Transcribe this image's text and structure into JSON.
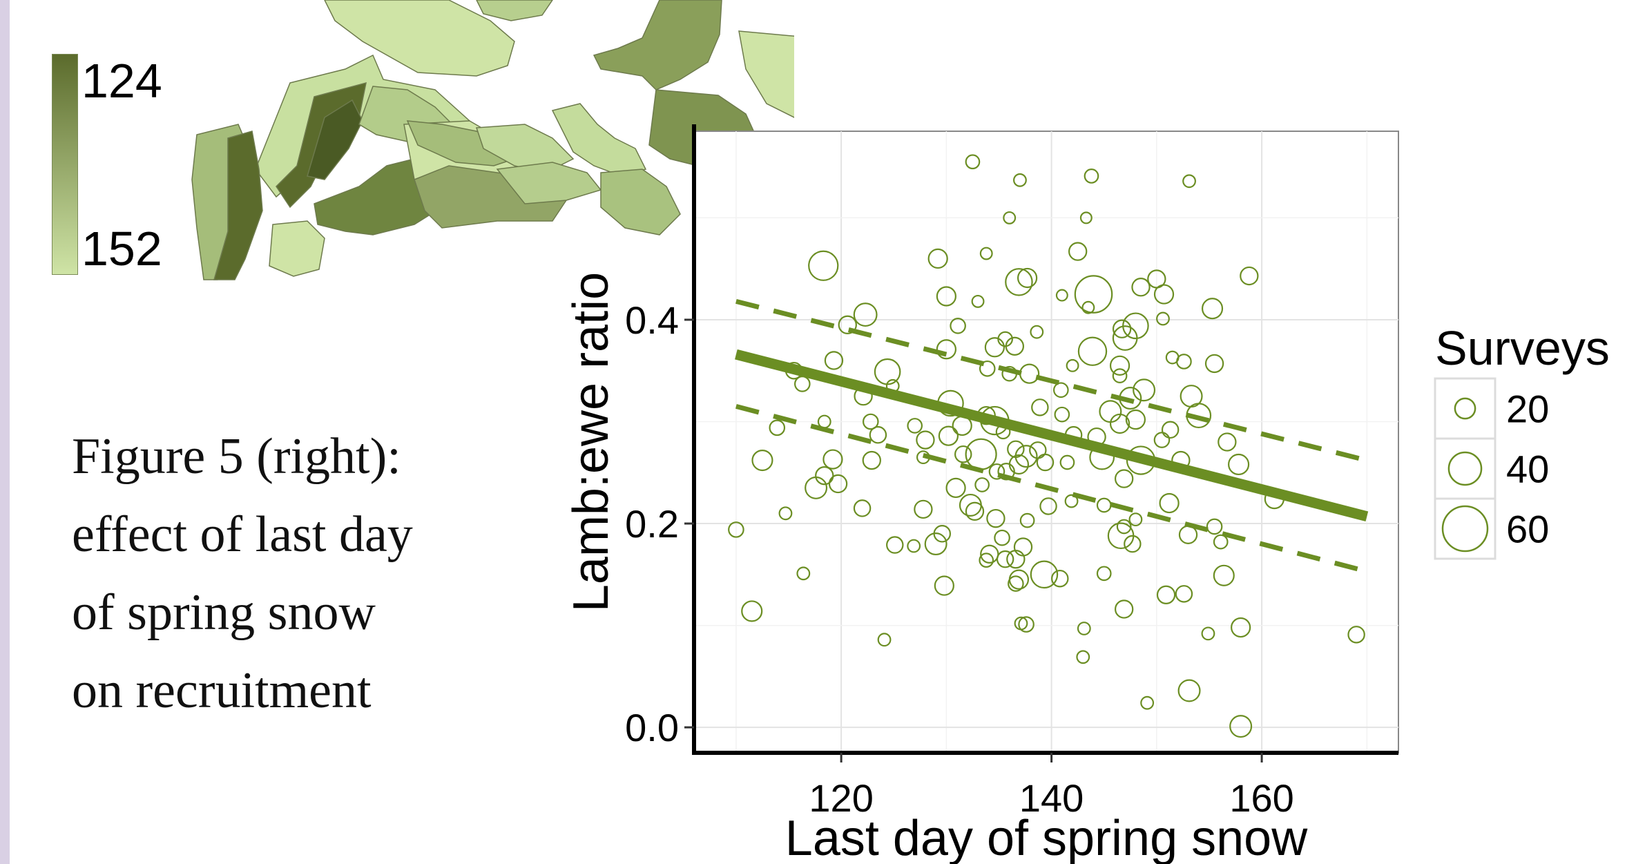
{
  "caption": {
    "lines": [
      "Figure 5 (right):",
      "effect of last day",
      "of spring snow",
      "on recruitment"
    ]
  },
  "map": {
    "legend_top": "124",
    "legend_bottom": "152",
    "colors": {
      "dark": "#5b6b2c",
      "mid": "#92a566",
      "light": "#cfe4a6"
    }
  },
  "chart_data": {
    "type": "scatter",
    "xlabel": "Last day of spring snow",
    "ylabel": "Lamb:ewe ratio",
    "xlim": [
      106,
      173
    ],
    "ylim": [
      -0.025,
      0.585
    ],
    "xticks": [
      120,
      140,
      160
    ],
    "yticks": [
      0.0,
      0.2,
      0.4
    ],
    "xtick_labels": [
      "120",
      "140",
      "160"
    ],
    "ytick_labels": [
      "0.0",
      "0.2",
      "0.4"
    ],
    "grid": true,
    "point_color": "#6b8e23",
    "size_legend": {
      "title": "Surveys",
      "position": "right",
      "entries": [
        {
          "label": "20",
          "value": 20
        },
        {
          "label": "40",
          "value": 40
        },
        {
          "label": "60",
          "value": 60
        }
      ]
    },
    "fit_line": {
      "x": [
        110,
        170
      ],
      "y": [
        0.366,
        0.207
      ]
    },
    "ci_upper": {
      "x": [
        110,
        170
      ],
      "y": [
        0.418,
        0.262
      ]
    },
    "ci_lower": {
      "x": [
        110,
        170
      ],
      "y": [
        0.315,
        0.153
      ]
    },
    "points": [
      [
        132.5,
        0.555,
        8
      ],
      [
        137,
        0.537,
        6
      ],
      [
        143.8,
        0.541,
        8
      ],
      [
        153.1,
        0.536,
        6
      ],
      [
        136,
        0.5,
        5
      ],
      [
        143.3,
        0.5,
        4
      ],
      [
        133.8,
        0.465,
        5
      ],
      [
        142.5,
        0.467,
        14
      ],
      [
        129.2,
        0.46,
        16
      ],
      [
        118.3,
        0.453,
        32
      ],
      [
        158.8,
        0.443,
        14
      ],
      [
        150,
        0.44,
        14
      ],
      [
        137.7,
        0.441,
        16
      ],
      [
        136.9,
        0.437,
        28
      ],
      [
        148.5,
        0.432,
        14
      ],
      [
        150.7,
        0.425,
        16
      ],
      [
        144,
        0.425,
        44
      ],
      [
        141,
        0.424,
        4
      ],
      [
        130,
        0.423,
        16
      ],
      [
        133,
        0.418,
        5
      ],
      [
        143.5,
        0.412,
        5
      ],
      [
        155.3,
        0.411,
        18
      ],
      [
        122.3,
        0.405,
        22
      ],
      [
        150.6,
        0.401,
        6
      ],
      [
        120.6,
        0.395,
        14
      ],
      [
        148,
        0.394,
        26
      ],
      [
        131.1,
        0.394,
        10
      ],
      [
        146.7,
        0.391,
        14
      ],
      [
        138.6,
        0.388,
        6
      ],
      [
        135.6,
        0.381,
        9
      ],
      [
        147,
        0.382,
        24
      ],
      [
        134.6,
        0.373,
        16
      ],
      [
        136.5,
        0.374,
        14
      ],
      [
        143.9,
        0.369,
        30
      ],
      [
        130,
        0.371,
        16
      ],
      [
        151.5,
        0.363,
        6
      ],
      [
        152.6,
        0.359,
        9
      ],
      [
        155.5,
        0.357,
        14
      ],
      [
        142,
        0.355,
        5
      ],
      [
        146.5,
        0.355,
        16
      ],
      [
        119.3,
        0.36,
        14
      ],
      [
        124.4,
        0.349,
        26
      ],
      [
        133.9,
        0.352,
        10
      ],
      [
        137.9,
        0.347,
        16
      ],
      [
        136,
        0.347,
        9
      ],
      [
        146.5,
        0.345,
        8
      ],
      [
        115.5,
        0.35,
        12
      ],
      [
        116.3,
        0.337,
        10
      ],
      [
        124.9,
        0.335,
        6
      ],
      [
        148.8,
        0.331,
        20
      ],
      [
        153.3,
        0.325,
        20
      ],
      [
        140.9,
        0.331,
        9
      ],
      [
        122.1,
        0.325,
        14
      ],
      [
        147.5,
        0.323,
        20
      ],
      [
        130.4,
        0.318,
        26
      ],
      [
        145.6,
        0.31,
        20
      ],
      [
        138.9,
        0.314,
        12
      ],
      [
        134.6,
        0.301,
        30
      ],
      [
        154,
        0.306,
        24
      ],
      [
        133.8,
        0.306,
        14
      ],
      [
        141,
        0.307,
        9
      ],
      [
        148,
        0.302,
        16
      ],
      [
        122.8,
        0.3,
        10
      ],
      [
        146.5,
        0.298,
        16
      ],
      [
        118.4,
        0.3,
        6
      ],
      [
        131.5,
        0.296,
        16
      ],
      [
        151.3,
        0.292,
        12
      ],
      [
        127,
        0.296,
        9
      ],
      [
        123.5,
        0.287,
        12
      ],
      [
        130.2,
        0.286,
        16
      ],
      [
        135.4,
        0.29,
        8
      ],
      [
        128,
        0.282,
        14
      ],
      [
        142.1,
        0.287,
        12
      ],
      [
        144.3,
        0.285,
        14
      ],
      [
        113.9,
        0.294,
        10
      ],
      [
        150.5,
        0.282,
        10
      ],
      [
        136.6,
        0.273,
        12
      ],
      [
        156.7,
        0.28,
        14
      ],
      [
        133.3,
        0.268,
        34
      ],
      [
        138.7,
        0.272,
        12
      ],
      [
        144.8,
        0.265,
        24
      ],
      [
        148.5,
        0.262,
        30
      ],
      [
        131.6,
        0.268,
        12
      ],
      [
        137.6,
        0.266,
        20
      ],
      [
        122.9,
        0.262,
        14
      ],
      [
        127.8,
        0.265,
        6
      ],
      [
        112.5,
        0.262,
        18
      ],
      [
        139.4,
        0.26,
        12
      ],
      [
        152.3,
        0.262,
        14
      ],
      [
        136.9,
        0.258,
        16
      ],
      [
        157.8,
        0.258,
        18
      ],
      [
        134.8,
        0.251,
        10
      ],
      [
        119.2,
        0.263,
        16
      ],
      [
        141.5,
        0.26,
        8
      ],
      [
        118.4,
        0.247,
        14
      ],
      [
        135.7,
        0.251,
        12
      ],
      [
        146.9,
        0.244,
        14
      ],
      [
        119.7,
        0.239,
        14
      ],
      [
        130.9,
        0.235,
        16
      ],
      [
        133.4,
        0.238,
        8
      ],
      [
        117.6,
        0.235,
        20
      ],
      [
        151.2,
        0.22,
        16
      ],
      [
        127.8,
        0.214,
        14
      ],
      [
        132.3,
        0.218,
        20
      ],
      [
        161.2,
        0.224,
        16
      ],
      [
        139.7,
        0.217,
        12
      ],
      [
        145,
        0.218,
        8
      ],
      [
        122,
        0.215,
        12
      ],
      [
        132.7,
        0.212,
        14
      ],
      [
        141.9,
        0.222,
        6
      ],
      [
        148,
        0.204,
        6
      ],
      [
        114.7,
        0.21,
        6
      ],
      [
        155.5,
        0.197,
        10
      ],
      [
        146.9,
        0.197,
        8
      ],
      [
        110,
        0.194,
        10
      ],
      [
        134.7,
        0.205,
        14
      ],
      [
        137.7,
        0.203,
        8
      ],
      [
        129,
        0.18,
        20
      ],
      [
        146.6,
        0.188,
        26
      ],
      [
        153,
        0.189,
        14
      ],
      [
        125.1,
        0.179,
        12
      ],
      [
        135.3,
        0.186,
        10
      ],
      [
        156.1,
        0.182,
        8
      ],
      [
        129.6,
        0.19,
        12
      ],
      [
        126.9,
        0.178,
        6
      ],
      [
        137.3,
        0.177,
        14
      ],
      [
        147.7,
        0.18,
        12
      ],
      [
        134.1,
        0.17,
        14
      ],
      [
        136.6,
        0.165,
        14
      ],
      [
        133.8,
        0.164,
        8
      ],
      [
        135.6,
        0.165,
        12
      ],
      [
        116.4,
        0.151,
        6
      ],
      [
        139.3,
        0.15,
        28
      ],
      [
        136.9,
        0.145,
        16
      ],
      [
        140.8,
        0.146,
        12
      ],
      [
        145,
        0.151,
        8
      ],
      [
        156.4,
        0.149,
        18
      ],
      [
        129.8,
        0.139,
        16
      ],
      [
        136.6,
        0.141,
        10
      ],
      [
        150.9,
        0.13,
        14
      ],
      [
        152.6,
        0.131,
        12
      ],
      [
        111.5,
        0.114,
        18
      ],
      [
        146.9,
        0.116,
        14
      ],
      [
        137.6,
        0.101,
        10
      ],
      [
        137.1,
        0.102,
        6
      ],
      [
        158,
        0.098,
        16
      ],
      [
        143.1,
        0.097,
        6
      ],
      [
        154.9,
        0.092,
        6
      ],
      [
        169,
        0.091,
        12
      ],
      [
        124.1,
        0.086,
        6
      ],
      [
        143,
        0.069,
        6
      ],
      [
        153.1,
        0.036,
        20
      ],
      [
        149.1,
        0.024,
        6
      ],
      [
        158,
        0.001,
        20
      ]
    ]
  }
}
